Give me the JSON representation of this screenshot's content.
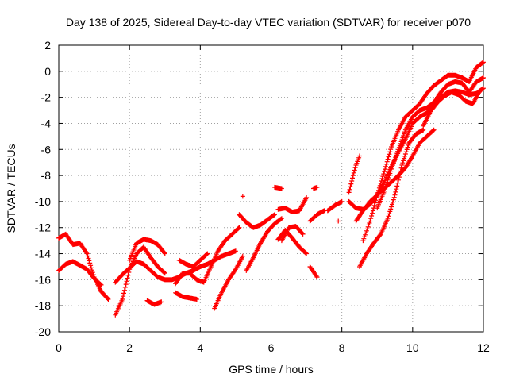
{
  "chart_data": {
    "type": "scatter",
    "title": "Day 138 of 2025, Sidereal Day-to-day VTEC variation (SDTVAR) for receiver p070",
    "xlabel": "GPS time / hours",
    "ylabel": "SDTVAR / TECUs",
    "xlim": [
      0,
      12
    ],
    "ylim": [
      -20,
      2
    ],
    "xticks": [
      0,
      2,
      4,
      6,
      8,
      10,
      12
    ],
    "yticks": [
      -20,
      -18,
      -16,
      -14,
      -12,
      -10,
      -8,
      -6,
      -4,
      -2,
      0,
      2
    ],
    "grid": true,
    "legend": "none",
    "marker": "+",
    "color": "#ff0000",
    "series": [
      {
        "x": [
          0.0,
          0.2,
          0.4,
          0.6,
          0.8,
          1.0,
          1.2,
          1.4
        ],
        "y": [
          -12.8,
          -12.5,
          -13.3,
          -13.2,
          -14.0,
          -15.8,
          -16.9,
          -17.5
        ]
      },
      {
        "x": [
          0.0,
          0.2,
          0.4,
          0.6,
          0.8,
          1.0,
          1.2
        ],
        "y": [
          -15.3,
          -14.8,
          -14.6,
          -14.9,
          -15.2,
          -15.9,
          -16.4
        ]
      },
      {
        "x": [
          1.6,
          1.8,
          2.0,
          2.2,
          2.4,
          2.6,
          2.8,
          3.0
        ],
        "y": [
          -18.7,
          -17.5,
          -15.2,
          -14.0,
          -13.5,
          -14.3,
          -15.0,
          -15.5
        ]
      },
      {
        "x": [
          1.6,
          1.8,
          2.0,
          2.2,
          2.4,
          2.6,
          2.8,
          3.0,
          3.2,
          3.4,
          3.6,
          3.8,
          4.0,
          4.2,
          4.4,
          4.6,
          4.8,
          5.0
        ],
        "y": [
          -16.2,
          -15.6,
          -15.1,
          -14.6,
          -14.8,
          -15.3,
          -15.8,
          -16.0,
          -16.0,
          -15.8,
          -15.5,
          -15.3,
          -15.0,
          -14.8,
          -14.5,
          -14.2,
          -14.0,
          -13.8
        ]
      },
      {
        "x": [
          2.0,
          2.2,
          2.4,
          2.6,
          2.8,
          3.0
        ],
        "y": [
          -14.5,
          -13.2,
          -12.9,
          -13.0,
          -13.3,
          -14.0
        ]
      },
      {
        "x": [
          2.5,
          2.7,
          2.9
        ],
        "y": [
          -17.6,
          -17.9,
          -17.7
        ]
      },
      {
        "x": [
          3.3,
          3.5,
          3.7,
          3.9,
          4.1,
          4.3,
          4.5,
          4.7,
          4.9,
          5.1
        ],
        "y": [
          -16.3,
          -15.5,
          -15.5,
          -16.0,
          -16.2,
          -15.0,
          -13.8,
          -13.0,
          -12.5,
          -12.0
        ]
      },
      {
        "x": [
          3.3,
          3.5,
          3.7,
          3.9
        ],
        "y": [
          -17.0,
          -17.3,
          -17.4,
          -17.5
        ]
      },
      {
        "x": [
          3.4,
          3.6,
          3.8,
          4.0,
          4.2
        ],
        "y": [
          -14.5,
          -14.8,
          -15.0,
          -14.5,
          -14.0
        ]
      },
      {
        "x": [
          4.4,
          4.6,
          4.8,
          5.0,
          5.2
        ],
        "y": [
          -18.2,
          -17.0,
          -16.0,
          -15.2,
          -14.2
        ]
      },
      {
        "x": [
          5.1,
          5.3,
          5.5,
          5.7,
          5.9,
          6.1
        ],
        "y": [
          -11.0,
          -11.6,
          -12.0,
          -11.8,
          -11.4,
          -11.0
        ]
      },
      {
        "x": [
          5.3,
          5.5,
          5.7,
          5.9,
          6.1,
          6.3
        ],
        "y": [
          -15.3,
          -14.3,
          -13.2,
          -12.3,
          -11.7,
          -11.3
        ]
      },
      {
        "x": [
          5.2
        ],
        "y": [
          -9.6
        ]
      },
      {
        "x": [
          6.1,
          6.3
        ],
        "y": [
          -8.9,
          -9.0
        ]
      },
      {
        "x": [
          6.2,
          6.4,
          6.6,
          6.8,
          7.0
        ],
        "y": [
          -10.6,
          -10.5,
          -10.8,
          -10.7,
          -9.7
        ]
      },
      {
        "x": [
          6.2,
          6.4,
          6.6,
          6.8,
          7.0
        ],
        "y": [
          -12.9,
          -12.2,
          -12.8,
          -13.5,
          -14.0
        ]
      },
      {
        "x": [
          6.3,
          6.5,
          6.7,
          6.9
        ],
        "y": [
          -13.0,
          -12.0,
          -11.9,
          -12.5
        ]
      },
      {
        "x": [
          7.1,
          7.2,
          7.3
        ],
        "y": [
          -15.0,
          -15.4,
          -15.8
        ]
      },
      {
        "x": [
          7.1,
          7.3,
          7.5
        ],
        "y": [
          -11.5,
          -11.0,
          -10.7
        ]
      },
      {
        "x": [
          7.2,
          7.3
        ],
        "y": [
          -9.0,
          -8.9
        ]
      },
      {
        "x": [
          7.6,
          7.8,
          8.0
        ],
        "y": [
          -10.7,
          -10.3,
          -10.0
        ]
      },
      {
        "x": [
          7.9
        ],
        "y": [
          -11.5
        ]
      },
      {
        "x": [
          8.2,
          8.4,
          8.6,
          8.8,
          9.0,
          9.2,
          9.4,
          9.6,
          9.8,
          10.0,
          10.2,
          10.4,
          10.6,
          10.8,
          11.0,
          11.2,
          11.4,
          11.6,
          11.8,
          12.0
        ],
        "y": [
          -10.0,
          -10.5,
          -10.6,
          -10.2,
          -9.5,
          -8.5,
          -7.3,
          -6.2,
          -5.2,
          -4.0,
          -3.5,
          -3.2,
          -2.6,
          -2.0,
          -1.6,
          -1.5,
          -1.6,
          -1.8,
          -1.7,
          -1.3
        ]
      },
      {
        "x": [
          8.2,
          8.3,
          8.4,
          8.5
        ],
        "y": [
          -9.3,
          -8.2,
          -7.2,
          -6.5
        ]
      },
      {
        "x": [
          8.4,
          8.6,
          8.8,
          9.0,
          9.2,
          9.4,
          9.6,
          9.8,
          10.0,
          10.2,
          10.4,
          10.6
        ],
        "y": [
          -11.5,
          -10.7,
          -10.0,
          -9.5,
          -9.0,
          -8.5,
          -8.0,
          -7.4,
          -6.5,
          -5.5,
          -5.0,
          -4.5
        ]
      },
      {
        "x": [
          8.5,
          8.7,
          8.9,
          9.1,
          9.3,
          9.5,
          9.7,
          9.9,
          10.1,
          10.3
        ],
        "y": [
          -15.0,
          -14.0,
          -13.2,
          -12.5,
          -11.3,
          -9.5,
          -7.2,
          -5.5,
          -4.8,
          -4.5
        ]
      },
      {
        "x": [
          8.6,
          8.8,
          9.0,
          9.2,
          9.4,
          9.6,
          9.8,
          10.0,
          10.2,
          10.4,
          10.6,
          10.8,
          11.0,
          11.2,
          11.4,
          11.6,
          11.8,
          12.0
        ],
        "y": [
          -13.0,
          -11.5,
          -9.5,
          -7.7,
          -5.8,
          -4.5,
          -3.5,
          -3.0,
          -2.5,
          -1.7,
          -1.1,
          -0.7,
          -0.3,
          -0.3,
          -0.5,
          -0.8,
          0.3,
          0.7
        ]
      },
      {
        "x": [
          9.0,
          9.2,
          9.4,
          9.6,
          9.8,
          10.0,
          10.2,
          10.4,
          10.6,
          10.8,
          11.0,
          11.2,
          11.4,
          11.6,
          11.8,
          12.0
        ],
        "y": [
          -10.5,
          -9.2,
          -7.5,
          -6.0,
          -4.5,
          -3.5,
          -3.0,
          -2.8,
          -2.4,
          -1.6,
          -1.0,
          -0.8,
          -0.9,
          -1.6,
          -0.8,
          -0.5
        ]
      },
      {
        "x": [
          10.3,
          10.5,
          10.7,
          10.9,
          11.1,
          11.3,
          11.5,
          11.7,
          11.9
        ],
        "y": [
          -4.2,
          -3.1,
          -2.4,
          -1.9,
          -1.6,
          -1.8,
          -2.3,
          -2.5,
          -1.5
        ]
      }
    ]
  }
}
